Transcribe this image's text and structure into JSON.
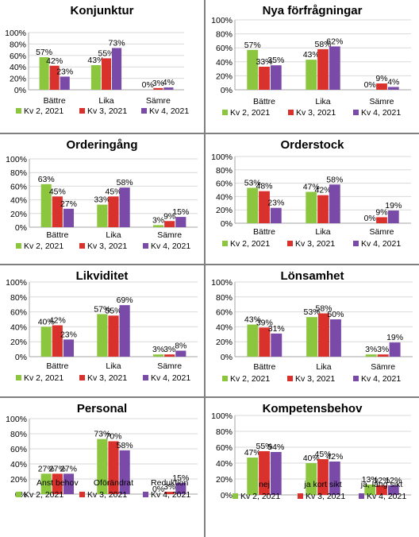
{
  "colors": {
    "green": "#8cc63e",
    "red": "#d9312c",
    "purple": "#7a4aa8",
    "divider": "#7f7f7f"
  },
  "chart_data": [
    {
      "type": "bar",
      "title": "Konjunktur",
      "categories": [
        "Bättre",
        "Lika",
        "Sämre"
      ],
      "series": [
        {
          "name": "Kv 2, 2021",
          "values": [
            57,
            43,
            0
          ]
        },
        {
          "name": "Kv 3, 2021",
          "values": [
            42,
            55,
            3
          ]
        },
        {
          "name": "Kv 4, 2021",
          "values": [
            23,
            73,
            4
          ]
        }
      ],
      "yticks": [
        "0%",
        "20%",
        "40%",
        "60%",
        "80%",
        "100%"
      ],
      "ylim": [
        0,
        100
      ],
      "legend": "bottom"
    },
    {
      "type": "bar",
      "title": "Nya förfrågningar",
      "categories": [
        "Bättre",
        "Lika",
        "Sämre"
      ],
      "series": [
        {
          "name": "Kv 2, 2021",
          "values": [
            57,
            43,
            0
          ]
        },
        {
          "name": "Kv 3, 2021",
          "values": [
            33,
            58,
            9
          ]
        },
        {
          "name": "Kv 4, 2021",
          "values": [
            35,
            62,
            4
          ]
        }
      ],
      "yticks": [
        "0%",
        "20%",
        "40%",
        "60%",
        "80%",
        "100%"
      ],
      "ylim": [
        0,
        100
      ],
      "legend": "bottom"
    },
    {
      "type": "bar",
      "title": "Orderingång",
      "categories": [
        "Bättre",
        "Lika",
        "Sämre"
      ],
      "series": [
        {
          "name": "Kv 2, 2021",
          "values": [
            63,
            33,
            3
          ]
        },
        {
          "name": "Kv 3, 2021",
          "values": [
            45,
            45,
            9
          ]
        },
        {
          "name": "Kv 4, 2021",
          "values": [
            27,
            58,
            15
          ]
        }
      ],
      "yticks": [
        "0%",
        "20%",
        "40%",
        "60%",
        "80%",
        "100%"
      ],
      "ylim": [
        0,
        100
      ],
      "legend": "bottom"
    },
    {
      "type": "bar",
      "title": "Orderstock",
      "categories": [
        "Bättre",
        "Lika",
        "Sämre"
      ],
      "series": [
        {
          "name": "Kv 2, 2021",
          "values": [
            53,
            47,
            0
          ]
        },
        {
          "name": "Kv 3, 2021",
          "values": [
            48,
            42,
            9
          ]
        },
        {
          "name": "Kv 4, 2021",
          "values": [
            23,
            58,
            19
          ]
        }
      ],
      "yticks": [
        "0%",
        "20%",
        "40%",
        "60%",
        "80%",
        "100%"
      ],
      "ylim": [
        0,
        100
      ],
      "legend": "bottom"
    },
    {
      "type": "bar",
      "title": "Likviditet",
      "categories": [
        "Bättre",
        "Lika",
        "Sämre"
      ],
      "series": [
        {
          "name": "Kv 2, 2021",
          "values": [
            40,
            57,
            3
          ]
        },
        {
          "name": "Kv 3, 2021",
          "values": [
            42,
            55,
            3
          ]
        },
        {
          "name": "Kv 4, 2021",
          "values": [
            23,
            69,
            8
          ]
        }
      ],
      "yticks": [
        "0%",
        "20%",
        "40%",
        "60%",
        "80%",
        "100%"
      ],
      "ylim": [
        0,
        100
      ],
      "legend": "bottom"
    },
    {
      "type": "bar",
      "title": "Lönsamhet",
      "categories": [
        "Bättre",
        "Lika",
        "Sämre"
      ],
      "series": [
        {
          "name": "Kv 2, 2021",
          "values": [
            43,
            53,
            3
          ]
        },
        {
          "name": "Kv 3, 2021",
          "values": [
            39,
            58,
            3
          ]
        },
        {
          "name": "Kv 4, 2021",
          "values": [
            31,
            50,
            19
          ]
        }
      ],
      "yticks": [
        "0%",
        "20%",
        "40%",
        "60%",
        "80%",
        "100%"
      ],
      "ylim": [
        0,
        100
      ],
      "legend": "bottom"
    },
    {
      "type": "bar",
      "title": "Personal",
      "categories": [
        "Anst behov",
        "Oförändrat",
        "Reduktion"
      ],
      "series": [
        {
          "name": "Kv 2, 2021",
          "values": [
            27,
            73,
            0
          ]
        },
        {
          "name": "Kv 3, 2021",
          "values": [
            27,
            70,
            3
          ]
        },
        {
          "name": "Kv 4, 2021",
          "values": [
            27,
            58,
            15
          ]
        }
      ],
      "yticks": [
        "0%",
        "20%",
        "40%",
        "60%",
        "80%",
        "100%"
      ],
      "ylim": [
        0,
        100
      ],
      "legend": "bottom"
    },
    {
      "type": "bar",
      "title": "Kompetensbehov",
      "categories": [
        "nej",
        "ja kort sikt",
        "ja, lång sikt"
      ],
      "series": [
        {
          "name": "Kv 2, 2021",
          "values": [
            47,
            40,
            13
          ]
        },
        {
          "name": "Kv 3, 2021",
          "values": [
            55,
            45,
            12
          ]
        },
        {
          "name": "Kv 4, 2021",
          "values": [
            54,
            42,
            12
          ]
        }
      ],
      "yticks": [
        "0%",
        "20%",
        "40%",
        "60%",
        "80%",
        "100%"
      ],
      "ylim": [
        0,
        100
      ],
      "legend": "bottom"
    }
  ]
}
